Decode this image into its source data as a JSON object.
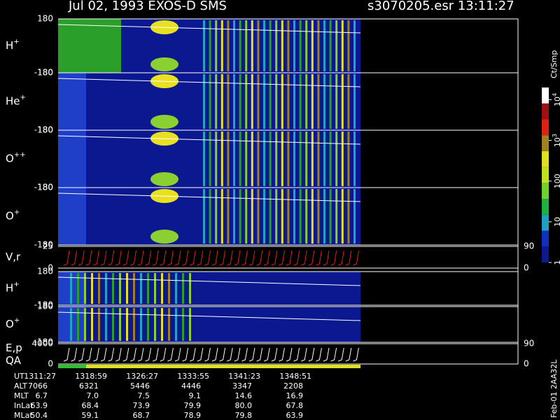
{
  "chart_data": {
    "title": "Jul 02, 1993   EXOS-D SMS",
    "subtitle": "s3070205.esr  13:11:27",
    "footnote": "Feb-01 2AA32L",
    "colorbar": {
      "label": "Ct/Smp",
      "ticks": [
        {
          "value": 10000,
          "label": "10",
          "sup": "4"
        },
        {
          "value": 1000,
          "label": "10",
          "sup": "3"
        },
        {
          "value": 100,
          "label": "100"
        },
        {
          "value": 10,
          "label": "10"
        },
        {
          "value": 1,
          "label": "1"
        }
      ]
    },
    "panels": [
      {
        "type": "heatmap",
        "label": "H",
        "sup": "+",
        "ylim": [
          -180,
          180
        ],
        "yticks": [
          -180,
          180
        ]
      },
      {
        "type": "heatmap",
        "label": "He",
        "sup": "+",
        "ylim": [
          -180,
          180
        ],
        "yticks": [
          -180,
          180
        ]
      },
      {
        "type": "heatmap",
        "label": "O",
        "sup": "++",
        "ylim": [
          -180,
          180
        ],
        "yticks": [
          -180,
          180
        ]
      },
      {
        "type": "heatmap",
        "label": "O",
        "sup": "+",
        "ylim": [
          -180,
          180
        ],
        "yticks": [
          -180,
          180
        ]
      },
      {
        "type": "line",
        "label": "V,r",
        "ylim": [
          0,
          25
        ],
        "yticks": [
          0,
          25
        ],
        "y2lim": [
          0,
          90
        ],
        "y2ticks": [
          0,
          90
        ]
      },
      {
        "type": "heatmap",
        "label": "H",
        "sup": "+",
        "ylim": [
          -180,
          180
        ],
        "yticks": [
          -180,
          180
        ]
      },
      {
        "type": "heatmap",
        "label": "O",
        "sup": "+",
        "ylim": [
          -180,
          180
        ],
        "yticks": [
          -180,
          180
        ]
      },
      {
        "type": "line",
        "label": "E,p",
        "label2": "QA",
        "ylim": [
          0,
          4000
        ],
        "yticks": [
          0,
          4000
        ],
        "y2lim": [
          0,
          90
        ],
        "y2ticks": [
          0,
          90
        ]
      }
    ],
    "table": [
      {
        "label": "UT",
        "values": [
          "1311:27",
          "1318:59",
          "1326:27",
          "1333:55",
          "1341:23",
          "1348:51"
        ]
      },
      {
        "label": "ALT",
        "values": [
          "7066",
          "6321",
          "5446",
          "4446",
          "3347",
          "2208"
        ]
      },
      {
        "label": "MLT",
        "values": [
          "6.7",
          "7.0",
          "7.5",
          "9.1",
          "14.6",
          "16.9"
        ]
      },
      {
        "label": "InLat",
        "values": [
          "63.9",
          "68.4",
          "73.9",
          "79.9",
          "80.0",
          "67.8"
        ]
      },
      {
        "label": "MLat",
        "values": [
          "50.4",
          "59.1",
          "68.7",
          "78.9",
          "79.8",
          "63.9"
        ]
      }
    ]
  }
}
